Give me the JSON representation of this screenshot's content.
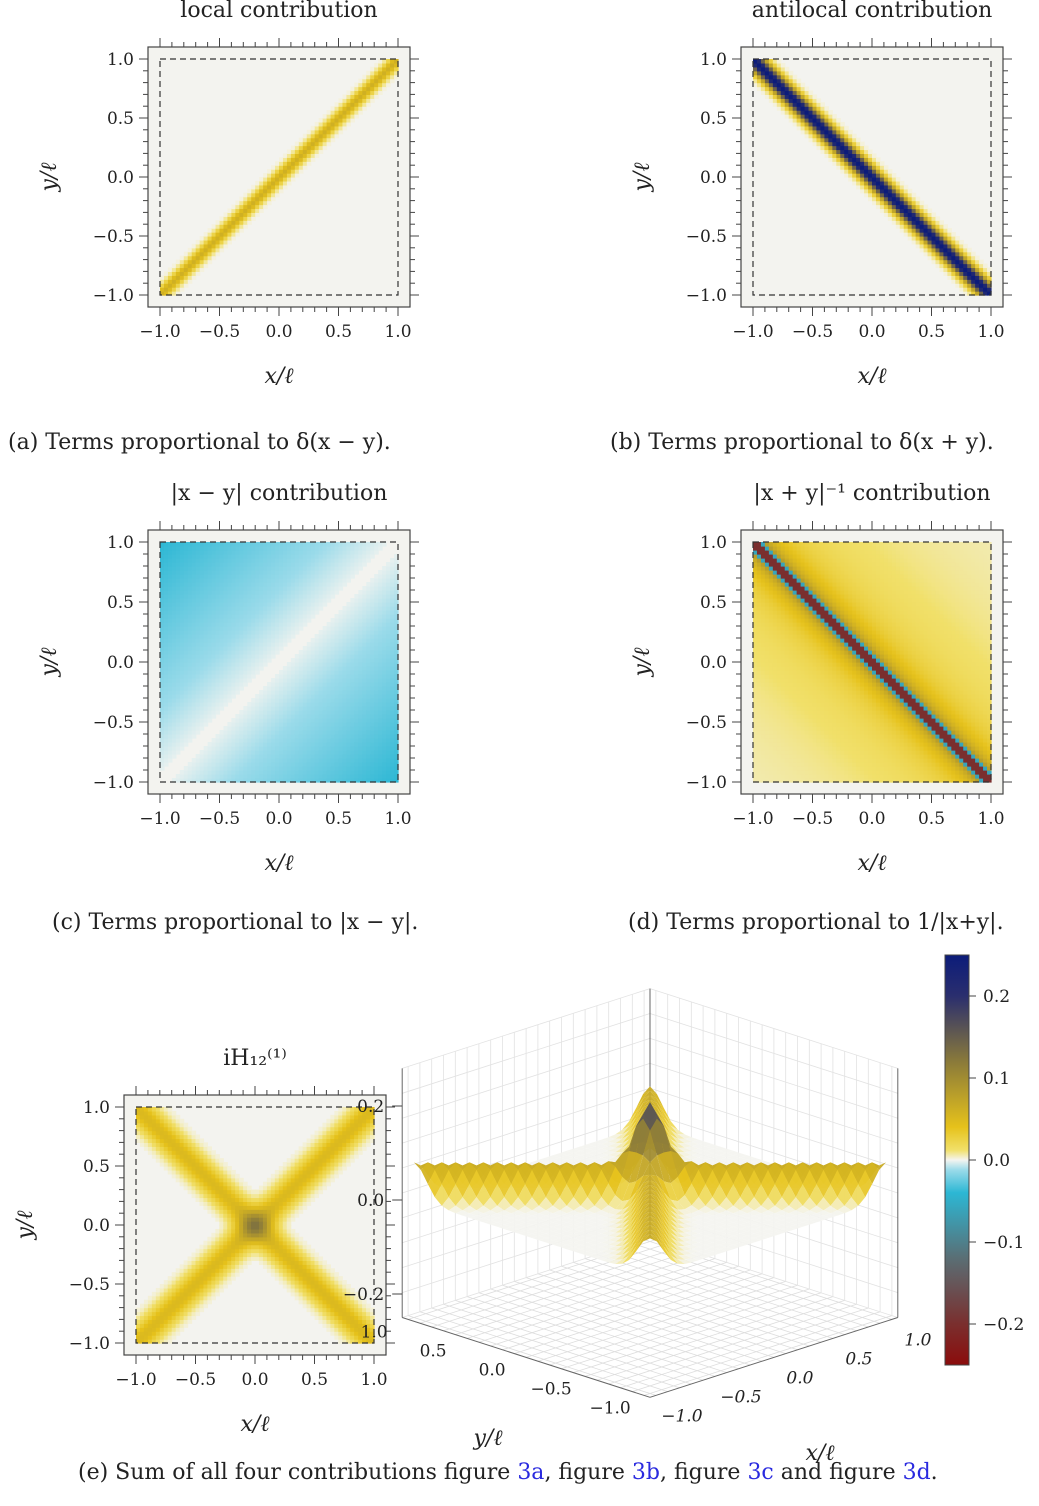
{
  "chart_data": [
    {
      "id": "a",
      "type": "heatmap",
      "title": "local contribution",
      "xlabel": "x/ℓ",
      "ylabel": "y/ℓ",
      "xlim": [
        -1.0,
        1.0
      ],
      "ylim": [
        -1.0,
        1.0
      ],
      "xticks": [
        "−1.0",
        "−0.5",
        "0.0",
        "0.5",
        "1.0"
      ],
      "yticks": [
        "1.0",
        "0.5",
        "0.0",
        "−0.5",
        "−1.0"
      ],
      "pattern": "diagonal x = y",
      "peak_value": 0.06,
      "caption": "(a) Terms proportional to δ(x − y)."
    },
    {
      "id": "b",
      "type": "heatmap",
      "title": "antilocal contribution",
      "xlabel": "x/ℓ",
      "ylabel": "y/ℓ",
      "xlim": [
        -1.0,
        1.0
      ],
      "ylim": [
        -1.0,
        1.0
      ],
      "xticks": [
        "−1.0",
        "−0.5",
        "0.0",
        "0.5",
        "1.0"
      ],
      "yticks": [
        "1.0",
        "0.5",
        "0.0",
        "−0.5",
        "−1.0"
      ],
      "pattern": "anti-diagonal x = −y",
      "peak_value": 0.25,
      "caption": "(b) Terms proportional to δ(x + y)."
    },
    {
      "id": "c",
      "type": "heatmap",
      "title": "|x − y| contribution",
      "xlabel": "x/ℓ",
      "ylabel": "y/ℓ",
      "xlim": [
        -1.0,
        1.0
      ],
      "ylim": [
        -1.0,
        1.0
      ],
      "xticks": [
        "−1.0",
        "−0.5",
        "0.0",
        "0.5",
        "1.0"
      ],
      "yticks": [
        "1.0",
        "0.5",
        "0.0",
        "−0.5",
        "−1.0"
      ],
      "pattern": "proportional to −|x − y|",
      "peak_value": -0.02,
      "caption": "(c) Terms proportional to |x − y|."
    },
    {
      "id": "d",
      "type": "heatmap",
      "title": "|x + y|⁻¹ contribution",
      "xlabel": "x/ℓ",
      "ylabel": "y/ℓ",
      "xlim": [
        -1.0,
        1.0
      ],
      "ylim": [
        -1.0,
        1.0
      ],
      "xticks": [
        "−1.0",
        "−0.5",
        "0.0",
        "0.5",
        "1.0"
      ],
      "yticks": [
        "1.0",
        "0.5",
        "0.0",
        "−0.5",
        "−1.0"
      ],
      "pattern": "1/|x + y| with sign change at the anti-diagonal",
      "peak_value": -0.2,
      "caption": "(d) Terms proportional to 1/|x+y|."
    },
    {
      "id": "e",
      "type": "heatmap",
      "title": "iH₁₂⁽¹⁾",
      "xlabel": "x/ℓ",
      "ylabel": "y/ℓ",
      "xlim": [
        -1.0,
        1.0
      ],
      "ylim": [
        -1.0,
        1.0
      ],
      "xticks": [
        "−1.0",
        "−0.5",
        "0.0",
        "0.5",
        "1.0"
      ],
      "yticks": [
        "1.0",
        "0.5",
        "0.0",
        "−0.5",
        "−1.0"
      ],
      "pattern": "sum: X shape",
      "peak_value": 0.12
    },
    {
      "id": "e-surface",
      "type": "surface3d",
      "zticks": [
        "0.2",
        "0.0",
        "−0.2"
      ],
      "yticks": [
        "1.0",
        "0.5",
        "0.0",
        "−0.5",
        "−1.0"
      ],
      "xticks": [
        "1.0",
        "0.5",
        "0.0",
        "−0.5",
        "−1.0"
      ],
      "xlabel": "x/ℓ",
      "ylabel": "y/ℓ"
    },
    {
      "id": "colorbar",
      "type": "colorbar",
      "range": [
        -0.25,
        0.25
      ],
      "ticks": [
        "0.2",
        "0.1",
        "0.0",
        "−0.1",
        "−0.2"
      ],
      "tick_values": [
        0.2,
        0.1,
        0.0,
        -0.1,
        -0.2
      ],
      "stops": [
        {
          "v": -0.25,
          "color": "#8b0c0c"
        },
        {
          "v": -0.2,
          "color": "#7a2f2e"
        },
        {
          "v": -0.12,
          "color": "#5a6e74"
        },
        {
          "v": -0.04,
          "color": "#2cb7d4"
        },
        {
          "v": -0.012,
          "color": "#9bdbea"
        },
        {
          "v": 0.0,
          "color": "#f4f4f0"
        },
        {
          "v": 0.012,
          "color": "#f1e06a"
        },
        {
          "v": 0.04,
          "color": "#e6c21b"
        },
        {
          "v": 0.12,
          "color": "#8a7a3a"
        },
        {
          "v": 0.2,
          "color": "#2a2e6e"
        },
        {
          "v": 0.25,
          "color": "#0c1c7a"
        }
      ]
    }
  ],
  "captions": {
    "e_prefix": "(e) Sum of all four contributions figure ",
    "e_ref1": "3a",
    "e_mid1": ", figure ",
    "e_ref2": "3b",
    "e_mid2": ", figure ",
    "e_ref3": "3c",
    "e_mid3": " and figure ",
    "e_ref4": "3d",
    "e_end": "."
  }
}
